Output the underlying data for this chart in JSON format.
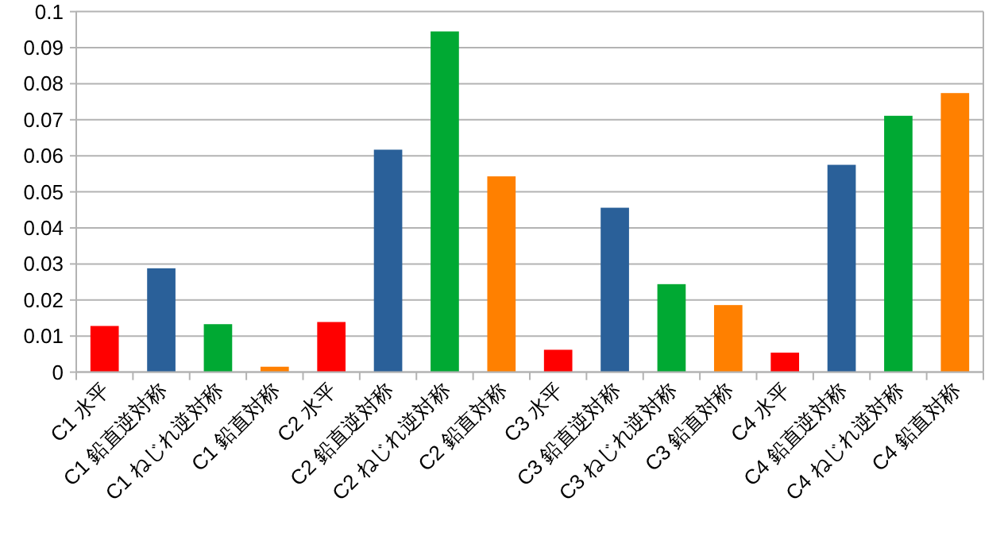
{
  "chart_data": {
    "type": "bar",
    "categories": [
      "C1 水平",
      "C1 鉛直逆対称",
      "C1 ねじれ逆対称",
      "C1 鉛直対称",
      "C2 水平",
      "C2 鉛直逆対称",
      "C2 ねじれ逆対称",
      "C2 鉛直対称",
      "C3 水平",
      "C3 鉛直逆対称",
      "C3 ねじれ逆対称",
      "C3 鉛直対称",
      "C4 水平",
      "C4 鉛直逆対称",
      "C4 ねじれ逆対称",
      "C4 鉛直対称"
    ],
    "values": [
      0.0128,
      0.0288,
      0.0133,
      0.0015,
      0.0139,
      0.0617,
      0.0945,
      0.0543,
      0.0062,
      0.0456,
      0.0244,
      0.0186,
      0.0054,
      0.0575,
      0.0711,
      0.0774
    ],
    "colors": [
      "#ff0000",
      "#2a6099",
      "#00a933",
      "#ff8000",
      "#ff0000",
      "#2a6099",
      "#00a933",
      "#ff8000",
      "#ff0000",
      "#2a6099",
      "#00a933",
      "#ff8000",
      "#ff0000",
      "#2a6099",
      "#00a933",
      "#ff8000"
    ],
    "ylim": [
      0,
      0.1
    ],
    "yticks": [
      0,
      0.01,
      0.02,
      0.03,
      0.04,
      0.05,
      0.06,
      0.07,
      0.08,
      0.09,
      0.1
    ],
    "grid": "y"
  }
}
